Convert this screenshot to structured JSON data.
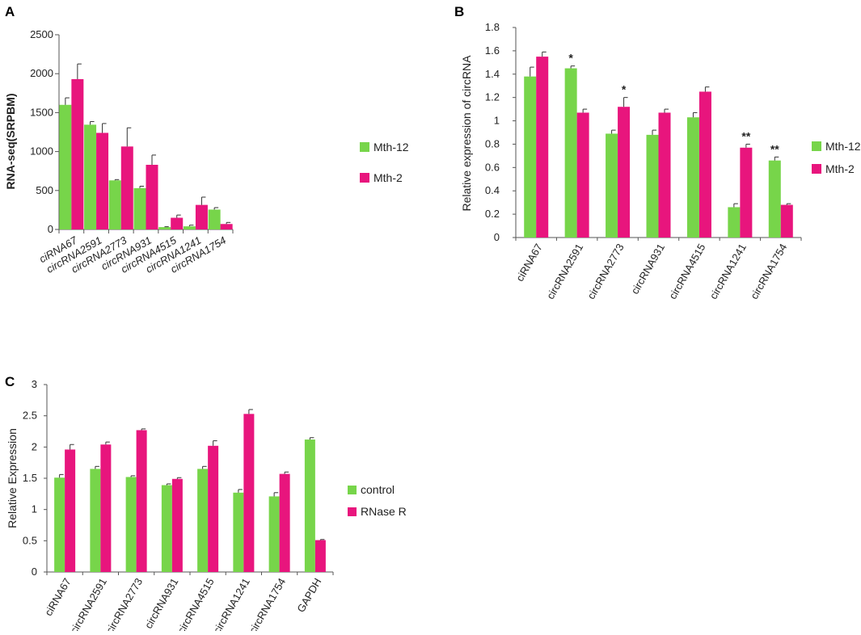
{
  "panels": {
    "a": "A",
    "b": "B",
    "c": "C"
  },
  "colors": {
    "green": "#77d54a",
    "pink": "#e8157d",
    "axis": "#555555"
  },
  "chart_data": [
    {
      "id": "A",
      "type": "bar",
      "title": "",
      "xlabel": "",
      "ylabel": "RNA-seq(SRPBM)",
      "ylim": [
        0,
        2500
      ],
      "yticks": [
        0,
        500,
        1000,
        1500,
        2000,
        2500
      ],
      "ytick_labels": [
        "0",
        "500",
        "1000",
        "1500",
        "2000",
        "2500"
      ],
      "categories": [
        "ciRNA67",
        "circRNA2591",
        "circRNA2773",
        "circRNA931",
        "circRNA4515",
        "circRNA1241",
        "circRNA1754"
      ],
      "series": [
        {
          "name": "Mth-12",
          "values": [
            1600,
            1345,
            630,
            530,
            30,
            40,
            255
          ],
          "errors": [
            90,
            40,
            10,
            25,
            5,
            15,
            25
          ]
        },
        {
          "name": "Mth-2",
          "values": [
            1930,
            1240,
            1065,
            830,
            150,
            315,
            70
          ],
          "errors": [
            195,
            120,
            240,
            125,
            35,
            100,
            20
          ]
        }
      ],
      "annotations": []
    },
    {
      "id": "B",
      "type": "bar",
      "title": "",
      "xlabel": "",
      "ylabel": "Relative expression of circRNA",
      "ylim": [
        0,
        1.8
      ],
      "yticks": [
        0,
        0.2,
        0.4,
        0.6,
        0.8,
        1.0,
        1.2,
        1.4,
        1.6,
        1.8
      ],
      "ytick_labels": [
        "0",
        "0.2",
        "0.4",
        "0.6",
        "0.8",
        "1",
        "1.2",
        "1.4",
        "1.6",
        "1.8"
      ],
      "categories": [
        "ciRNA67",
        "circRNA2591",
        "circRNA2773",
        "circRNA931",
        "circRNA4515",
        "circRNA1241",
        "circRNA1754"
      ],
      "series": [
        {
          "name": "Mth-12",
          "values": [
            1.38,
            1.45,
            0.89,
            0.88,
            1.03,
            0.26,
            0.66
          ],
          "errors": [
            0.08,
            0.02,
            0.03,
            0.04,
            0.04,
            0.03,
            0.03
          ]
        },
        {
          "name": "Mth-2",
          "values": [
            1.55,
            1.07,
            1.12,
            1.07,
            1.25,
            0.77,
            0.28
          ],
          "errors": [
            0.04,
            0.03,
            0.08,
            0.03,
            0.04,
            0.03,
            0.01
          ]
        }
      ],
      "annotations": [
        {
          "category_index": 1,
          "series_index": 0,
          "text": "*"
        },
        {
          "category_index": 2,
          "series_index": 1,
          "text": "*"
        },
        {
          "category_index": 5,
          "series_index": 1,
          "text": "**"
        },
        {
          "category_index": 6,
          "series_index": 0,
          "text": "**"
        }
      ]
    },
    {
      "id": "C",
      "type": "bar",
      "title": "",
      "xlabel": "",
      "ylabel": "Relative Expression",
      "ylim": [
        0,
        3
      ],
      "yticks": [
        0,
        0.5,
        1.0,
        1.5,
        2.0,
        2.5,
        3.0
      ],
      "ytick_labels": [
        "0",
        "0.5",
        "1",
        "1.5",
        "2",
        "2.5",
        "3"
      ],
      "categories": [
        "ciRNA67",
        "circRNA2591",
        "circRNA2773",
        "circRNA931",
        "circRNA4515",
        "circRNA1241",
        "circRNA1754",
        "GAPDH"
      ],
      "series": [
        {
          "name": "control",
          "values": [
            1.51,
            1.65,
            1.52,
            1.39,
            1.65,
            1.27,
            1.21,
            2.12
          ],
          "errors": [
            0.05,
            0.04,
            0.02,
            0.02,
            0.04,
            0.05,
            0.06,
            0.03
          ]
        },
        {
          "name": "RNase R",
          "values": [
            1.96,
            2.04,
            2.27,
            1.49,
            2.02,
            2.53,
            1.57,
            0.51
          ],
          "errors": [
            0.08,
            0.04,
            0.02,
            0.02,
            0.08,
            0.07,
            0.03,
            0.01
          ]
        }
      ],
      "annotations": []
    }
  ]
}
